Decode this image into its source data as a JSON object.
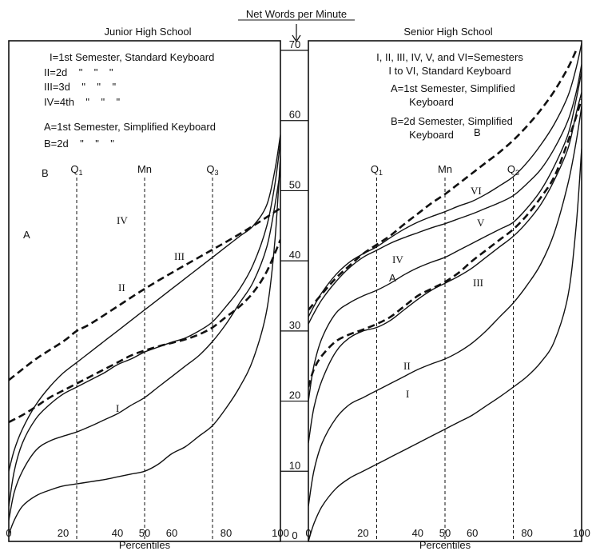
{
  "figure": {
    "center_axis_title": "Net Words per Minute",
    "left_x_label": "Percentiles",
    "right_x_label": "Percentiles"
  },
  "chart_data": [
    {
      "type": "line",
      "title": "Junior High School",
      "xlabel": "Percentiles",
      "ylabel": "Net Words per Minute",
      "xlim": [
        0,
        100
      ],
      "ylim": [
        0,
        70
      ],
      "x_ticks": [
        0,
        20,
        40,
        50,
        60,
        80,
        100
      ],
      "y_ticks": [
        0,
        10,
        20,
        30,
        40,
        50,
        60,
        70
      ],
      "grid": false,
      "legend_lines": [
        "I=1st Semester, Standard Keyboard",
        "II=2d    \"    \"    \"",
        "III=3d    \"    \"    \"",
        "IV=4th    \"    \"    \"",
        "A=1st Semester, Simplified Keyboard",
        "B=2d    \"    \"    \""
      ],
      "reference_lines": [
        {
          "label": "Q1",
          "x": 25
        },
        {
          "label": "Mn",
          "x": 50
        },
        {
          "label": "Q3",
          "x": 75
        }
      ],
      "series": [
        {
          "name": "I",
          "dash": false,
          "x": [
            0,
            2,
            5,
            10,
            15,
            20,
            25,
            30,
            35,
            40,
            45,
            50,
            55,
            60,
            65,
            70,
            75,
            80,
            85,
            90,
            95,
            98,
            100
          ],
          "y": [
            1,
            3,
            5,
            6.5,
            7.3,
            7.9,
            8.2,
            8.5,
            8.8,
            9.2,
            9.6,
            10,
            11,
            12.5,
            13.5,
            15,
            16.5,
            19,
            22,
            26,
            33,
            43,
            55
          ]
        },
        {
          "name": "II",
          "dash": false,
          "x": [
            0,
            2,
            5,
            10,
            15,
            20,
            25,
            30,
            35,
            40,
            45,
            50,
            55,
            60,
            65,
            70,
            75,
            80,
            85,
            90,
            95,
            98,
            100
          ],
          "y": [
            3,
            7,
            10,
            13,
            14.3,
            15,
            15.6,
            16.4,
            17.3,
            18.2,
            19.4,
            20.5,
            22,
            23.5,
            25,
            26.5,
            28.5,
            31,
            34,
            37,
            42,
            48,
            53
          ]
        },
        {
          "name": "III",
          "dash": false,
          "x": [
            0,
            2,
            5,
            10,
            15,
            20,
            25,
            30,
            35,
            40,
            45,
            50,
            55,
            60,
            65,
            70,
            75,
            80,
            85,
            90,
            95,
            98,
            100
          ],
          "y": [
            5,
            10,
            14,
            17.5,
            19.5,
            21,
            22,
            23,
            24,
            25.2,
            26,
            27,
            27.7,
            28.4,
            29,
            30,
            31.3,
            33.5,
            36,
            39.5,
            45,
            51,
            57
          ]
        },
        {
          "name": "IV",
          "dash": false,
          "x": [
            0,
            2,
            5,
            10,
            15,
            20,
            25,
            30,
            35,
            40,
            45,
            50,
            55,
            60,
            65,
            70,
            75,
            80,
            85,
            90,
            95,
            98,
            100
          ],
          "y": [
            10,
            13,
            16,
            19.5,
            22,
            24,
            25.5,
            27,
            28.5,
            30,
            31.5,
            33,
            34.5,
            36,
            37.5,
            39,
            40.5,
            42,
            43.5,
            45,
            48,
            53,
            58
          ]
        },
        {
          "name": "A",
          "dash": true,
          "x": [
            0,
            5,
            10,
            15,
            20,
            25,
            30,
            35,
            40,
            45,
            50,
            55,
            60,
            65,
            70,
            75,
            80,
            85,
            90,
            95,
            100
          ],
          "y": [
            17,
            18,
            19.2,
            20.5,
            21.5,
            22.5,
            23.5,
            24.5,
            25.5,
            26.5,
            27.2,
            27.8,
            28.3,
            28.8,
            29.5,
            30.5,
            32,
            33.5,
            35.5,
            38.5,
            43
          ]
        },
        {
          "name": "B",
          "dash": true,
          "x": [
            0,
            10,
            20,
            25,
            30,
            40,
            50,
            60,
            70,
            80,
            90,
            100
          ],
          "y": [
            23,
            26,
            28.5,
            30,
            31,
            33.5,
            36,
            38.3,
            40.5,
            42.7,
            45,
            47.5
          ]
        }
      ],
      "annotations": [
        "A",
        "B",
        "I",
        "II",
        "III",
        "IV"
      ]
    },
    {
      "type": "line",
      "title": "Senior High School",
      "xlabel": "Percentiles",
      "ylabel": "Net Words per Minute",
      "xlim": [
        0,
        100
      ],
      "ylim": [
        0,
        70
      ],
      "x_ticks": [
        0,
        20,
        40,
        50,
        60,
        80,
        100
      ],
      "grid": false,
      "legend_lines": [
        "I, II, III, IV, V, and VI=Semesters",
        "I to VI, Standard Keyboard",
        "A=1st Semester, Simplified",
        "Keyboard",
        "B=2d Semester, Simplified",
        "Keyboard"
      ],
      "reference_lines": [
        {
          "label": "Q1",
          "x": 25
        },
        {
          "label": "Mn",
          "x": 50
        },
        {
          "label": "Q3",
          "x": 75
        }
      ],
      "series": [
        {
          "name": "I",
          "dash": false,
          "x": [
            0,
            2,
            5,
            10,
            15,
            20,
            25,
            30,
            35,
            40,
            45,
            50,
            55,
            60,
            65,
            70,
            75,
            80,
            85,
            90,
            95,
            98,
            100
          ],
          "y": [
            0,
            2.5,
            5,
            7.5,
            9,
            10,
            11,
            12,
            13,
            14,
            15,
            16,
            17,
            18,
            19.3,
            20.6,
            22,
            23.5,
            25.5,
            28.5,
            35,
            45,
            56
          ]
        },
        {
          "name": "II",
          "dash": false,
          "x": [
            0,
            2,
            5,
            10,
            15,
            20,
            25,
            30,
            35,
            40,
            45,
            50,
            55,
            60,
            65,
            70,
            75,
            80,
            85,
            90,
            95,
            98,
            100
          ],
          "y": [
            5,
            10,
            14,
            17.5,
            19.5,
            20.5,
            21.5,
            22.5,
            23.5,
            24.5,
            25.3,
            26,
            27,
            28.3,
            30,
            32,
            34,
            36.5,
            39.5,
            44,
            51,
            57,
            62
          ]
        },
        {
          "name": "III",
          "dash": false,
          "x": [
            0,
            2,
            5,
            10,
            15,
            20,
            25,
            30,
            35,
            40,
            45,
            50,
            55,
            60,
            65,
            70,
            75,
            80,
            85,
            90,
            95,
            98,
            100
          ],
          "y": [
            14,
            19,
            23,
            27,
            29,
            30,
            30.5,
            31.5,
            33,
            34.5,
            35.8,
            36.8,
            37.8,
            39,
            40.5,
            42,
            43.5,
            45.5,
            48,
            51.5,
            56,
            61,
            64
          ]
        },
        {
          "name": "IV",
          "dash": false,
          "x": [
            0,
            2,
            5,
            10,
            15,
            20,
            25,
            30,
            35,
            40,
            45,
            50,
            55,
            60,
            65,
            70,
            75,
            80,
            85,
            90,
            95,
            98,
            100
          ],
          "y": [
            20,
            25,
            29,
            32.5,
            34,
            35,
            35.8,
            36.8,
            38,
            39,
            39.8,
            40.5,
            41.5,
            42.5,
            43.5,
            44.5,
            45.5,
            47.5,
            50,
            53.5,
            58,
            63,
            67
          ]
        },
        {
          "name": "V",
          "dash": false,
          "x": [
            0,
            2,
            5,
            10,
            15,
            20,
            25,
            30,
            35,
            40,
            45,
            50,
            55,
            60,
            65,
            70,
            75,
            80,
            85,
            90,
            95,
            98,
            100
          ],
          "y": [
            31,
            32.5,
            34.5,
            37,
            39,
            40.5,
            41.5,
            42.5,
            43.3,
            44,
            44.7,
            45.3,
            46,
            46.7,
            47.5,
            48.3,
            49.3,
            51,
            53,
            56,
            60,
            64,
            68
          ]
        },
        {
          "name": "VI",
          "dash": false,
          "x": [
            0,
            2,
            5,
            10,
            15,
            20,
            25,
            30,
            35,
            40,
            45,
            50,
            55,
            60,
            65,
            70,
            75,
            80,
            85,
            90,
            95,
            98,
            100
          ],
          "y": [
            32,
            33.5,
            35.5,
            38,
            39.8,
            41,
            42,
            43.3,
            44.5,
            45.5,
            46.3,
            47,
            47.8,
            48.5,
            49.5,
            50.7,
            52,
            54,
            56.5,
            59.5,
            63.5,
            67.5,
            71
          ]
        },
        {
          "name": "A",
          "dash": true,
          "x": [
            0,
            2,
            5,
            10,
            15,
            20,
            25,
            30,
            35,
            40,
            45,
            50,
            55,
            60,
            65,
            70,
            75,
            80,
            85,
            90,
            95,
            100
          ],
          "y": [
            22,
            24.5,
            26.5,
            28.5,
            29.5,
            30.2,
            31,
            32,
            33.5,
            35,
            36,
            37,
            38.3,
            40,
            41.5,
            43,
            44.5,
            46.5,
            49,
            52,
            57,
            63
          ]
        },
        {
          "name": "B",
          "dash": true,
          "x": [
            0,
            5,
            10,
            15,
            20,
            25,
            30,
            35,
            40,
            45,
            50,
            55,
            60,
            65,
            70,
            75,
            80,
            85,
            90,
            95,
            98
          ],
          "y": [
            33,
            35.3,
            37.5,
            39.3,
            41,
            42.3,
            43.6,
            45.2,
            46.7,
            48.2,
            49.5,
            51,
            52.5,
            54,
            55.5,
            57.2,
            59.2,
            61.5,
            64.2,
            67.5,
            70
          ]
        }
      ],
      "annotations": [
        "A",
        "B",
        "I",
        "II",
        "III",
        "IV",
        "V",
        "VI"
      ]
    }
  ]
}
